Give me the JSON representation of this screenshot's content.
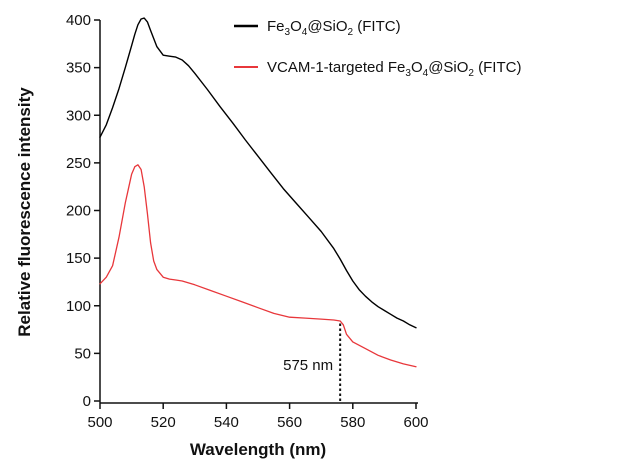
{
  "chart_data": {
    "type": "line",
    "title": "",
    "xlabel": "Wavelength (nm)",
    "ylabel": "Relative fluorescence intensity",
    "xlim": [
      500,
      600
    ],
    "ylim": [
      0,
      400
    ],
    "x_ticks": [
      500,
      520,
      540,
      560,
      580,
      600
    ],
    "y_ticks": [
      0,
      50,
      100,
      150,
      200,
      250,
      300,
      350,
      400
    ],
    "grid": false,
    "legend_position": "top-right",
    "series": [
      {
        "name": "Fe3O4@SiO2 (FITC)",
        "color": "#000000",
        "x": [
          500,
          502,
          504,
          506,
          508,
          510,
          511,
          512,
          513,
          514,
          515,
          516,
          518,
          520,
          522,
          524,
          526,
          528,
          530,
          534,
          538,
          542,
          546,
          550,
          554,
          558,
          562,
          566,
          570,
          574,
          576,
          578,
          580,
          582,
          584,
          586,
          588,
          590,
          592,
          594,
          596,
          598,
          600
        ],
        "y": [
          277,
          290,
          308,
          328,
          350,
          373,
          385,
          395,
          401,
          402,
          398,
          389,
          372,
          363,
          362,
          361,
          358,
          352,
          344,
          327,
          309,
          292,
          274,
          257,
          240,
          223,
          208,
          193,
          178,
          160,
          149,
          137,
          126,
          117,
          110,
          104,
          99,
          95,
          91,
          87,
          84,
          80,
          77
        ]
      },
      {
        "name": "VCAM-1-targeted Fe3O4@SiO2 (FITC)",
        "color": "#e8373b",
        "x": [
          500,
          502,
          504,
          506,
          508,
          510,
          511,
          512,
          513,
          514,
          515,
          516,
          517,
          518,
          520,
          522,
          524,
          526,
          528,
          530,
          535,
          540,
          545,
          550,
          555,
          560,
          565,
          570,
          574,
          576,
          577,
          578,
          580,
          584,
          588,
          592,
          596,
          600
        ],
        "y": [
          123,
          130,
          142,
          172,
          208,
          238,
          246,
          248,
          243,
          225,
          197,
          166,
          147,
          138,
          130,
          128,
          127,
          126,
          124,
          122,
          116,
          110,
          104,
          98,
          92,
          88,
          87,
          86,
          85,
          84,
          80,
          70,
          62,
          55,
          48,
          43,
          39,
          36
        ]
      }
    ],
    "annotations": [
      {
        "text": "575 nm",
        "x": 576,
        "y_from": 0,
        "y_to": 84,
        "style": "dotted"
      }
    ]
  }
}
